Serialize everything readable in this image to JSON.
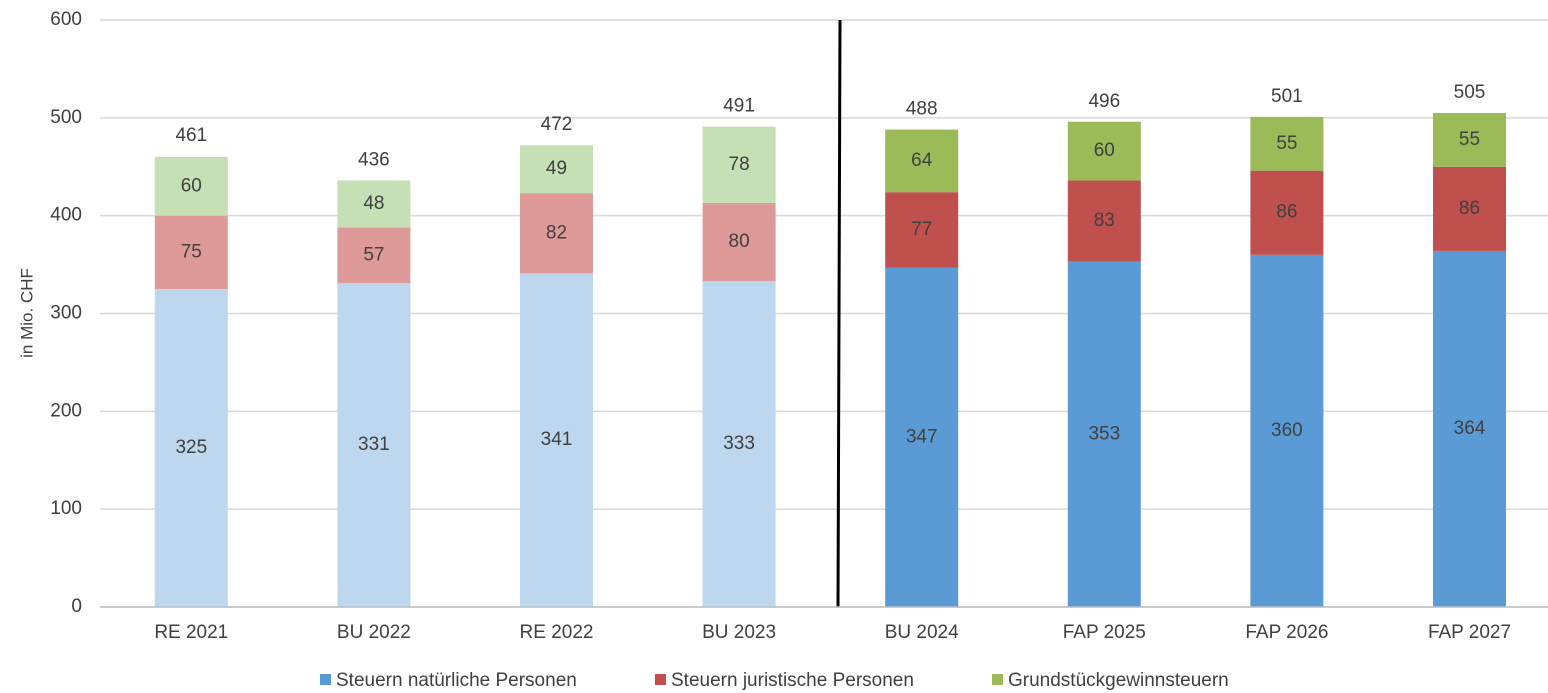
{
  "chart_data": {
    "type": "stacked_bar",
    "y_label": "in Mio. CHF",
    "categories": [
      "RE 2021",
      "BU 2022",
      "RE 2022",
      "BU 2023",
      "BU 2024",
      "FAP 2025",
      "FAP 2026",
      "FAP 2027"
    ],
    "series": [
      {
        "name": "Steuern natürliche Personen",
        "color": "#5b9bd5",
        "colors": [
          "#bdd7ee",
          "#bdd7ee",
          "#bdd7ee",
          "#bdd7ee",
          "#5b9bd5",
          "#5b9bd5",
          "#5b9bd5",
          "#5b9bd5"
        ],
        "values": [
          325,
          331,
          341,
          333,
          347,
          353,
          360,
          364
        ]
      },
      {
        "name": "Steuern juristische Personen",
        "color": "#c0504d",
        "colors": [
          "#dd9a98",
          "#dd9a98",
          "#dd9a98",
          "#dd9a98",
          "#c0504d",
          "#c0504d",
          "#c0504d",
          "#c0504d"
        ],
        "values": [
          75,
          57,
          82,
          80,
          77,
          83,
          86,
          86
        ]
      },
      {
        "name": "Grundstückgewinnsteuern",
        "color": "#9bbb59",
        "colors": [
          "#c5e0b4",
          "#c5e0b4",
          "#c5e0b4",
          "#c5e0b4",
          "#9bbb59",
          "#9bbb59",
          "#9bbb59",
          "#9bbb59"
        ],
        "values": [
          60,
          48,
          49,
          78,
          64,
          60,
          55,
          55
        ]
      }
    ],
    "totals": [
      461,
      436,
      472,
      491,
      488,
      496,
      501,
      505
    ],
    "ylim": [
      0,
      600
    ],
    "yticks": [
      0,
      100,
      200,
      300,
      400,
      500,
      600
    ],
    "grid": true,
    "legend": "bottom"
  }
}
